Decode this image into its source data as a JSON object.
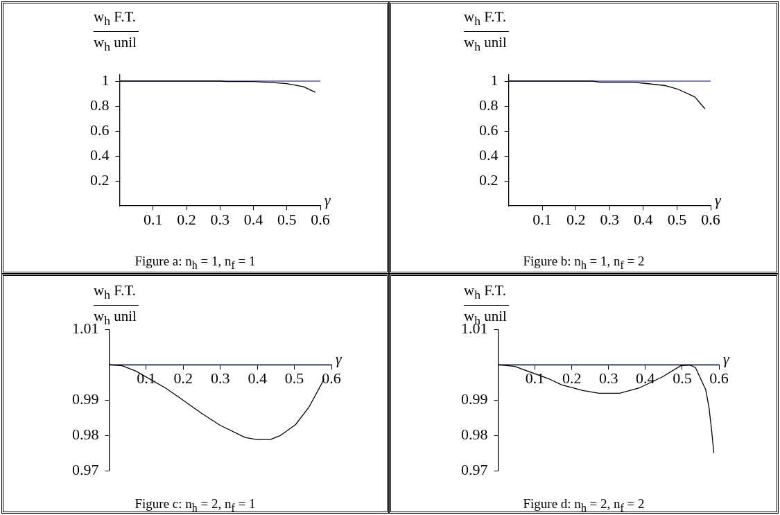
{
  "chart_data": [
    {
      "type": "line",
      "title": "Figure a: n$_{h}$ = 1, n$_{f}$ = 1",
      "xlabel": "γ",
      "ylabel": "w$_{h}$ F.T.",
      "annotations": [
        "w$_{h}$ unil"
      ],
      "xlim": [
        0,
        0.6
      ],
      "ylim": [
        0,
        1.05
      ],
      "xticks": [
        0.1,
        0.2,
        0.3,
        0.4,
        0.5,
        0.6
      ],
      "yticks": [
        0.2,
        0.4,
        0.6,
        0.8,
        1
      ],
      "legend": false,
      "grid": false,
      "marker": "none",
      "ref_lines": [
        {
          "axis": "y",
          "value": 1,
          "color": "#5558a8"
        }
      ],
      "series": [
        {
          "color": "#000000",
          "x": [
            0,
            0.1,
            0.2,
            0.3,
            0.32,
            0.4,
            0.45,
            0.5,
            0.55,
            0.585
          ],
          "values": [
            1,
            1,
            1,
            1,
            0.997,
            0.996,
            0.99,
            0.98,
            0.955,
            0.91
          ]
        }
      ]
    },
    {
      "type": "line",
      "title": "Figure b: n$_{h}$ = 1, n$_{f}$ = 2",
      "xlabel": "γ",
      "ylabel": "w$_{h}$ F.T.",
      "annotations": [
        "w$_{h}$ unil"
      ],
      "xlim": [
        0,
        0.6
      ],
      "ylim": [
        0,
        1.05
      ],
      "xticks": [
        0.1,
        0.2,
        0.3,
        0.4,
        0.5,
        0.6
      ],
      "yticks": [
        0.2,
        0.4,
        0.6,
        0.8,
        1
      ],
      "legend": false,
      "grid": false,
      "marker": "none",
      "ref_lines": [
        {
          "axis": "y",
          "value": 1,
          "color": "#5558a8"
        }
      ],
      "series": [
        {
          "color": "#000000",
          "x": [
            0,
            0.1,
            0.2,
            0.25,
            0.27,
            0.37,
            0.405,
            0.465,
            0.502,
            0.553,
            0.583
          ],
          "values": [
            1,
            1,
            1,
            1,
            0.991,
            0.991,
            0.982,
            0.964,
            0.936,
            0.873,
            0.778
          ]
        }
      ]
    },
    {
      "type": "line",
      "title": "Figure c: n$_{h}$ = 2, n$_{f}$ = 1",
      "xlabel": "γ",
      "ylabel": "w$_{h}$ F.T.",
      "annotations": [
        "w$_{h}$ unil"
      ],
      "xlim": [
        0,
        0.6
      ],
      "ylim": [
        0.97,
        1.01
      ],
      "xticks": [
        0.1,
        0.2,
        0.3,
        0.4,
        0.5,
        0.6
      ],
      "yticks": [
        0.97,
        0.98,
        0.99,
        1.01
      ],
      "legend": false,
      "grid": false,
      "marker": "none",
      "ref_lines": [
        {
          "axis": "y",
          "value": 1,
          "color": "#2b2e6e"
        }
      ],
      "series": [
        {
          "color": "#000000",
          "x": [
            0,
            0.035,
            0.072,
            0.152,
            0.177,
            0.25,
            0.3,
            0.367,
            0.398,
            0.435,
            0.463,
            0.503,
            0.54,
            0.574,
            0.58
          ],
          "values": [
            1,
            0.9997,
            0.9982,
            0.9934,
            0.9916,
            0.9862,
            0.9828,
            0.9794,
            0.9788,
            0.9788,
            0.98,
            0.983,
            0.9881,
            0.9947,
            0.996
          ]
        }
      ]
    },
    {
      "type": "line",
      "title": "Figure d: n$_{h}$ = 2, n$_{f}$ = 2",
      "xlabel": "γ",
      "ylabel": "w$_{h}$ F.T.",
      "annotations": [
        "w$_{h}$ unil"
      ],
      "xlim": [
        0,
        0.6
      ],
      "ylim": [
        0.97,
        1.01
      ],
      "xticks": [
        0.1,
        0.2,
        0.3,
        0.4,
        0.5,
        0.6
      ],
      "yticks": [
        0.97,
        0.98,
        0.99,
        1.01
      ],
      "legend": false,
      "grid": false,
      "marker": "none",
      "ref_lines": [
        {
          "axis": "y",
          "value": 1,
          "color": "#2b2e6e"
        }
      ],
      "series": [
        {
          "color": "#000000",
          "x": [
            0,
            0.045,
            0.138,
            0.172,
            0.23,
            0.274,
            0.33,
            0.385,
            0.447,
            0.496,
            0.521,
            0.536,
            0.564,
            0.573,
            0.58,
            0.586
          ],
          "values": [
            1,
            0.9995,
            0.996,
            0.9943,
            0.9927,
            0.9919,
            0.9919,
            0.9935,
            0.9966,
            0.9997,
            0.9999,
            0.9992,
            0.9929,
            0.9878,
            0.9814,
            0.975
          ]
        }
      ]
    }
  ]
}
